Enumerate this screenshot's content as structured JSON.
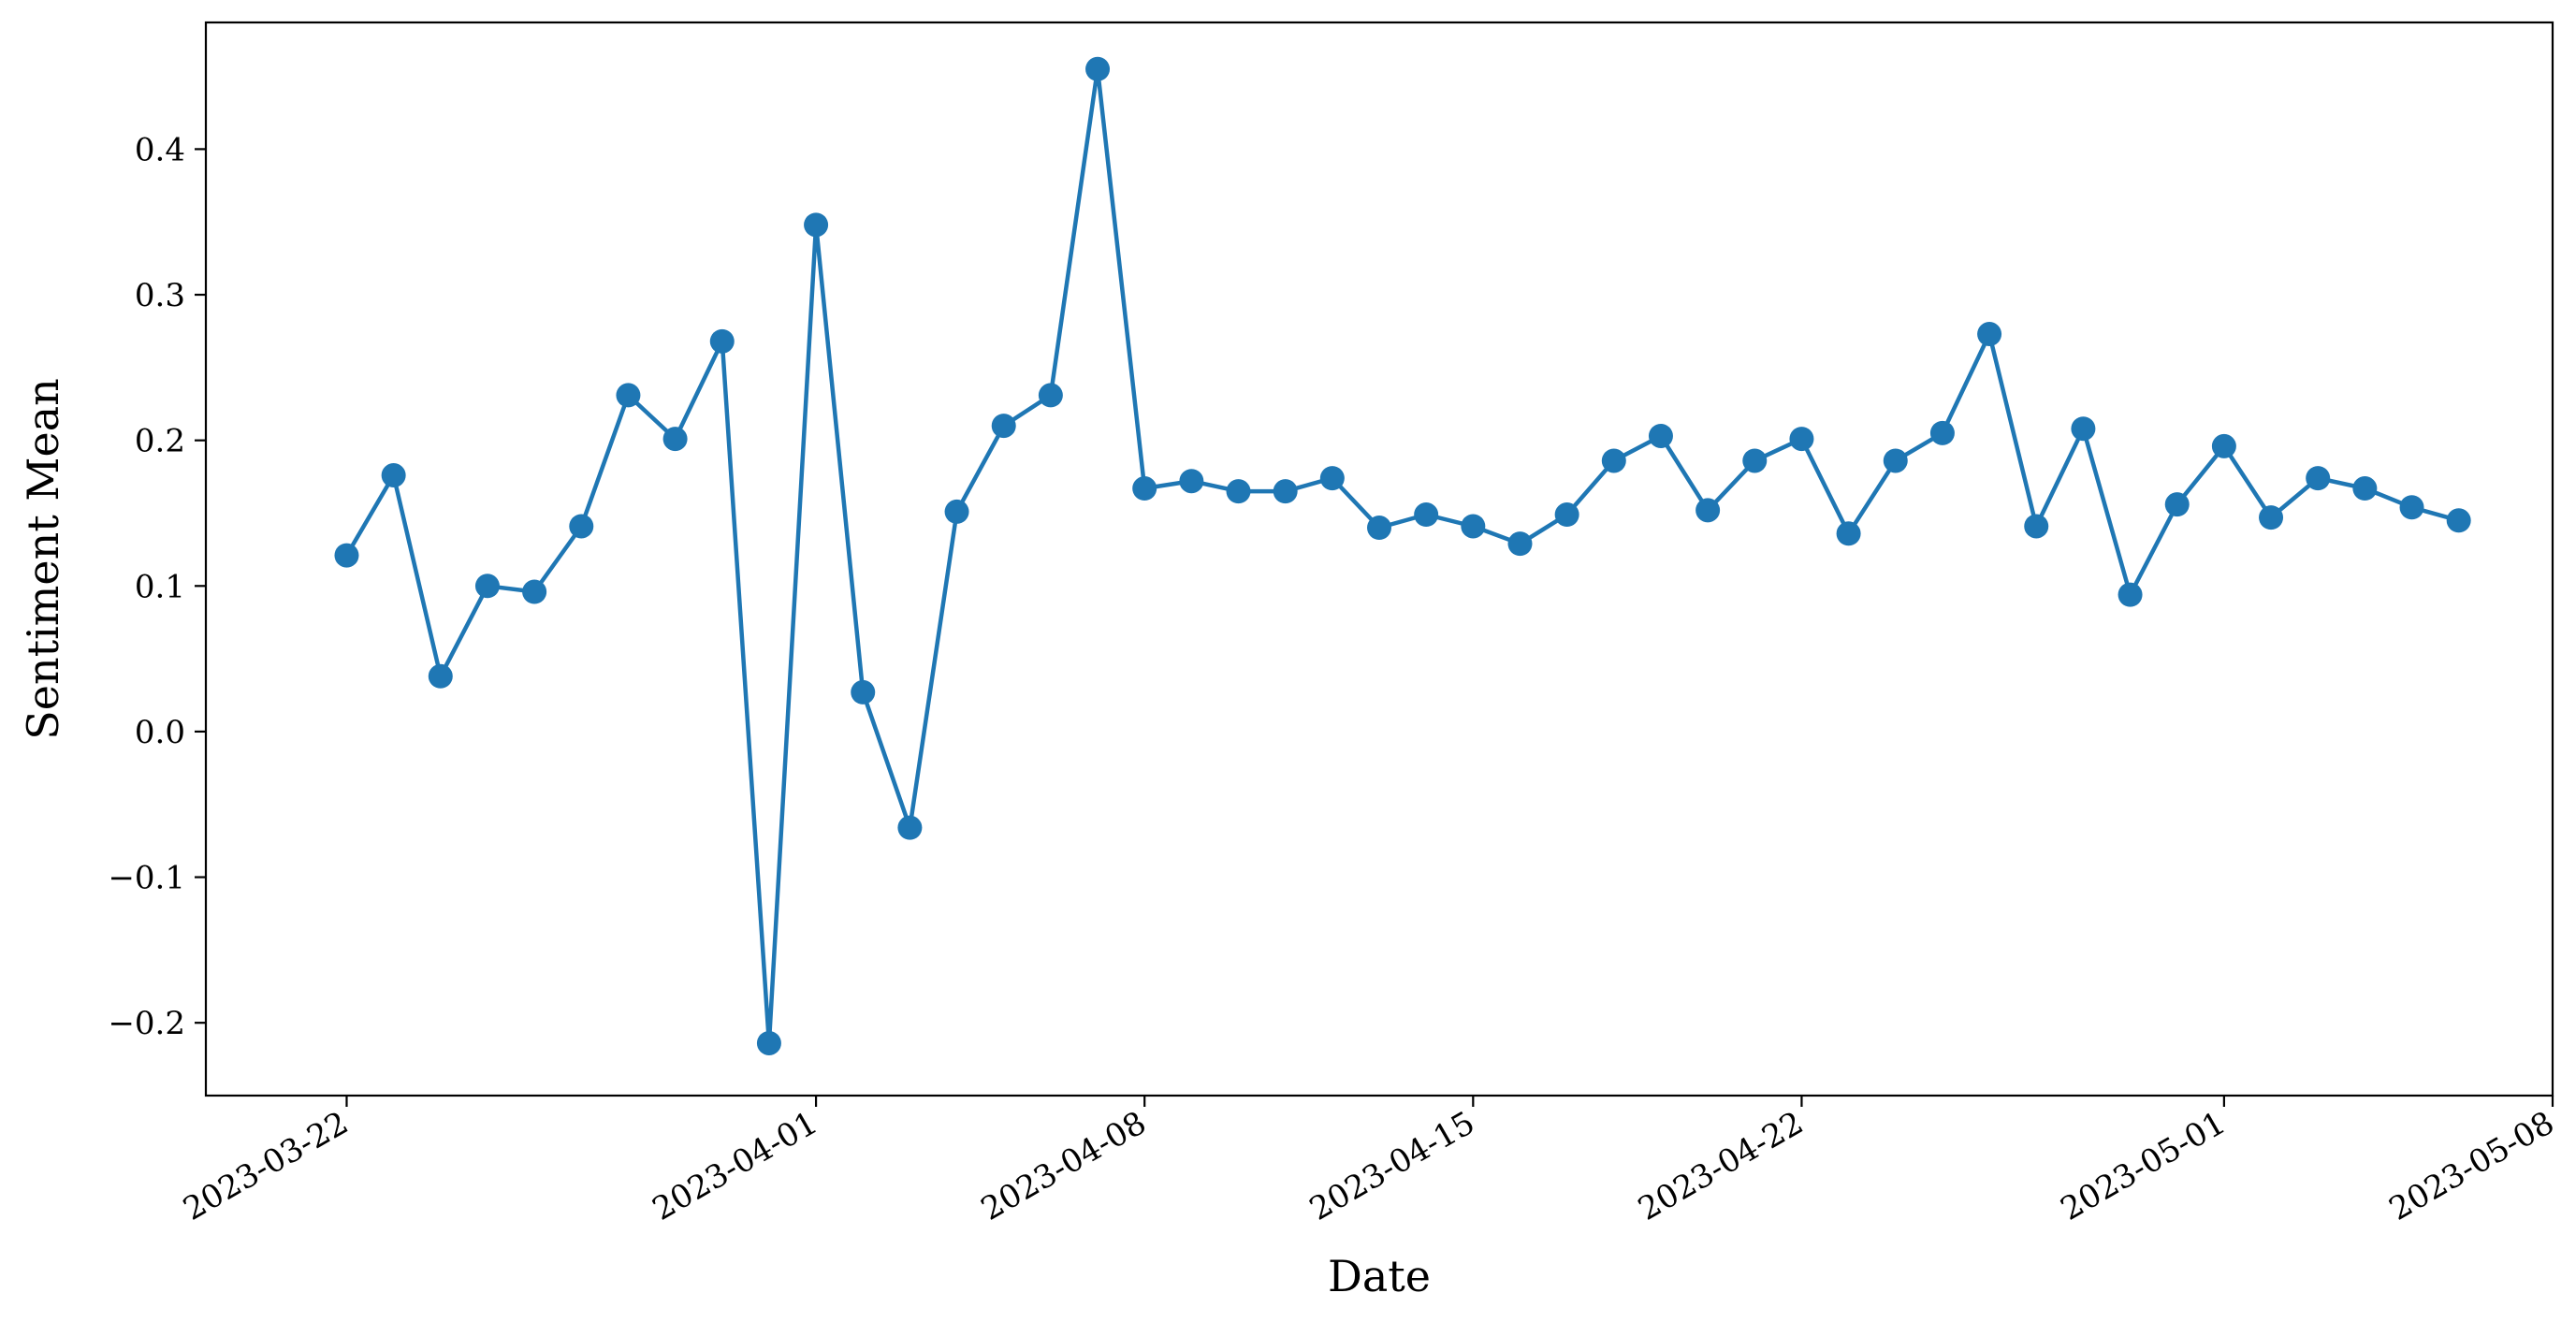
{
  "chart_data": {
    "type": "line",
    "title": "",
    "xlabel": "Date",
    "ylabel": "Sentiment Mean",
    "x_axis_type": "date",
    "xlim": [
      "2023-03-19",
      "2023-05-08"
    ],
    "ylim": [
      -0.25,
      0.487
    ],
    "grid": false,
    "legend": "none",
    "x_ticks": [
      "2023-03-22",
      "2023-04-01",
      "2023-04-08",
      "2023-04-15",
      "2023-04-22",
      "2023-05-01",
      "2023-05-08"
    ],
    "y_ticks": [
      -0.2,
      -0.1,
      0.0,
      0.1,
      0.2,
      0.3,
      0.4
    ],
    "y_tick_labels": [
      "−0.2",
      "−0.1",
      "0.0",
      "0.1",
      "0.2",
      "0.3",
      "0.4"
    ],
    "series": [
      {
        "color": "#1f77b4",
        "marker": "circle",
        "x": [
          "2023-03-22",
          "2023-03-23",
          "2023-03-24",
          "2023-03-25",
          "2023-03-26",
          "2023-03-27",
          "2023-03-28",
          "2023-03-29",
          "2023-03-30",
          "2023-03-31",
          "2023-04-01",
          "2023-04-02",
          "2023-04-03",
          "2023-04-04",
          "2023-04-05",
          "2023-04-06",
          "2023-04-07",
          "2023-04-08",
          "2023-04-09",
          "2023-04-10",
          "2023-04-11",
          "2023-04-12",
          "2023-04-13",
          "2023-04-14",
          "2023-04-15",
          "2023-04-16",
          "2023-04-17",
          "2023-04-18",
          "2023-04-19",
          "2023-04-20",
          "2023-04-21",
          "2023-04-22",
          "2023-04-23",
          "2023-04-24",
          "2023-04-25",
          "2023-04-26",
          "2023-04-27",
          "2023-04-28",
          "2023-04-29",
          "2023-04-30",
          "2023-05-01",
          "2023-05-02",
          "2023-05-03",
          "2023-05-04",
          "2023-05-05",
          "2023-05-06"
        ],
        "y": [
          0.121,
          0.176,
          0.038,
          0.1,
          0.096,
          0.141,
          0.231,
          0.201,
          0.268,
          -0.214,
          0.348,
          0.027,
          -0.066,
          0.151,
          0.21,
          0.231,
          0.455,
          0.167,
          0.172,
          0.165,
          0.165,
          0.174,
          0.14,
          0.149,
          0.141,
          0.129,
          0.149,
          0.186,
          0.203,
          0.152,
          0.186,
          0.201,
          0.136,
          0.186,
          0.205,
          0.273,
          0.141,
          0.208,
          0.094,
          0.156,
          0.196,
          0.147,
          0.174,
          0.167,
          0.154,
          0.145
        ]
      }
    ]
  }
}
